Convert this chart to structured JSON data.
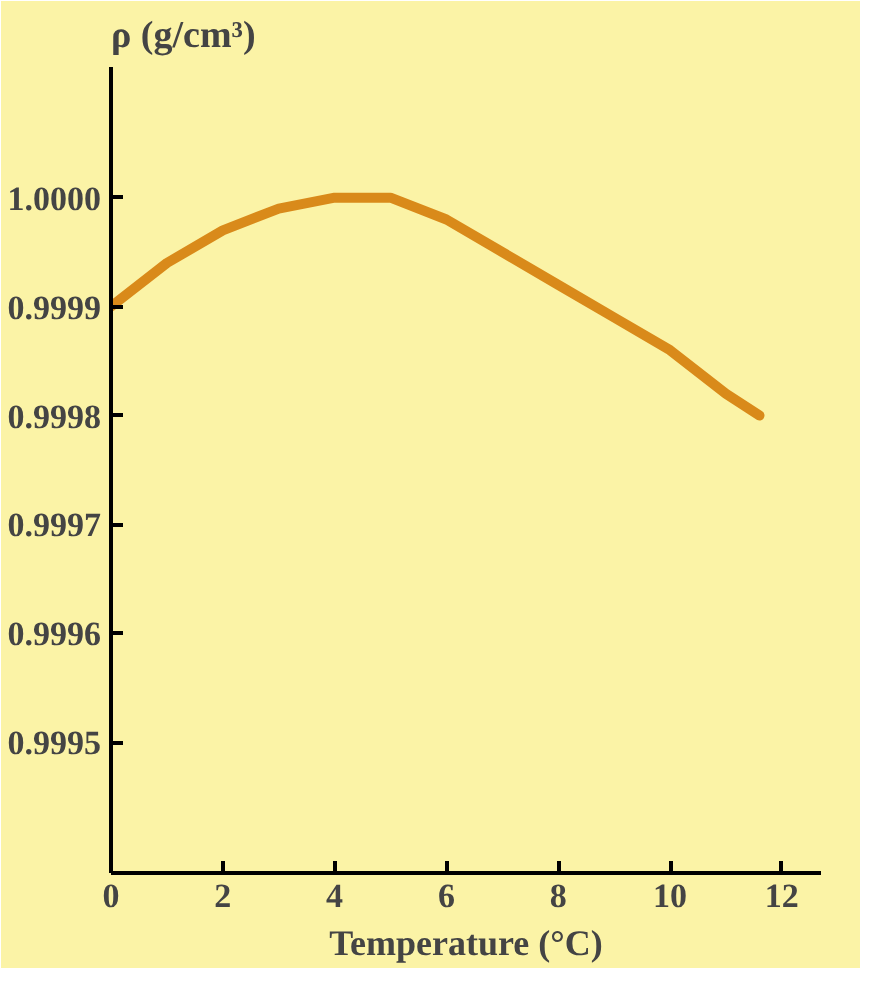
{
  "chart_data": {
    "type": "line",
    "xlabel": "Temperature (°C)",
    "ylabel": "ρ (g/cm³)",
    "x": [
      0,
      1,
      2,
      3,
      4,
      5,
      6,
      7,
      8,
      9,
      10,
      11,
      11.6
    ],
    "series": [
      {
        "color": "#d98a1a",
        "values": [
          0.9999,
          0.99994,
          0.99997,
          0.99999,
          1.0,
          1.0,
          0.99998,
          0.99995,
          0.99992,
          0.99989,
          0.99986,
          0.99982,
          0.9998
        ]
      }
    ],
    "xlim": [
      0,
      12.7
    ],
    "ylim": [
      0.99938,
      1.00012
    ],
    "xticks": [
      0,
      2,
      4,
      6,
      8,
      10,
      12
    ],
    "yticks": [
      {
        "value": 0.9995,
        "label": "0.9995"
      },
      {
        "value": 0.9996,
        "label": "0.9996"
      },
      {
        "value": 0.9997,
        "label": "0.9997"
      },
      {
        "value": 0.9998,
        "label": "0.9998"
      },
      {
        "value": 0.9999,
        "label": "0.9999"
      },
      {
        "value": 1.0,
        "label": "1.0000"
      }
    ],
    "grid": false,
    "marker": "none",
    "line_style": "solid"
  }
}
